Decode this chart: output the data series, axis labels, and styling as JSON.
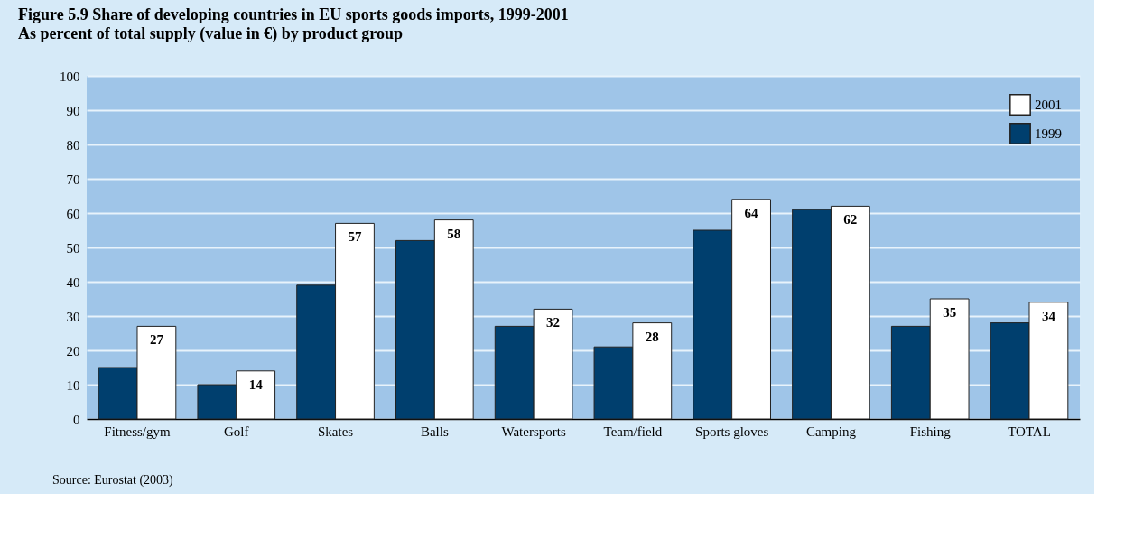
{
  "chart_data": {
    "type": "bar",
    "title": "Figure 5.9   Share of developing countries in EU sports goods imports, 1999-2001",
    "subtitle": "As percent of total supply (value in €) by product group",
    "categories": [
      "Fitness/gym",
      "Golf",
      "Skates",
      "Balls",
      "Watersports",
      "Team/field",
      "Sports gloves",
      "Camping",
      "Fishing",
      "TOTAL"
    ],
    "series": [
      {
        "name": "1999",
        "color": "#003f6e",
        "values": [
          15,
          10,
          39,
          52,
          27,
          21,
          55,
          61,
          27,
          28
        ]
      },
      {
        "name": "2001",
        "color": "#ffffff",
        "values": [
          27,
          14,
          57,
          58,
          32,
          28,
          64,
          62,
          35,
          34
        ],
        "value_labels": [
          "27",
          "14",
          "57",
          "58",
          "32",
          "28",
          "64",
          "62",
          "35",
          "34"
        ]
      }
    ],
    "ylim": [
      0,
      100
    ],
    "yticks": [
      0,
      10,
      20,
      30,
      40,
      50,
      60,
      70,
      80,
      90,
      100
    ],
    "grid": "y",
    "legend": "top right",
    "annotations": [
      "Source: Eurostat (2003)"
    ]
  }
}
